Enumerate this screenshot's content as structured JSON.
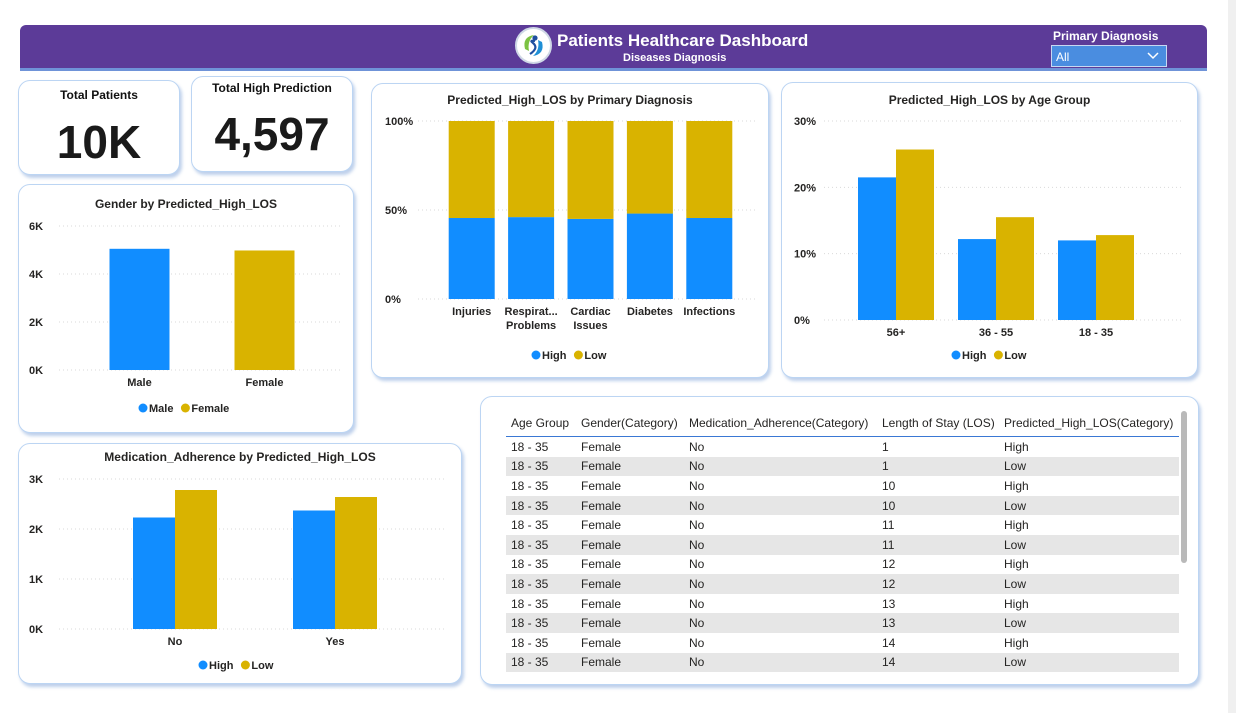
{
  "header": {
    "title": "Patients Healthcare Dashboard",
    "subtitle": "Diseases Diagnosis",
    "slicer_label": "Primary Diagnosis",
    "slicer_value": "All"
  },
  "kpis": {
    "total_patients_label": "Total Patients",
    "total_patients_value": "10K",
    "total_high_label": "Total High Prediction",
    "total_high_value": "4,597"
  },
  "colors": {
    "high": "#118dff",
    "low": "#d9b300",
    "header": "#5c3b98"
  },
  "chart_data": [
    {
      "id": "gender",
      "type": "bar",
      "title": "Gender by Predicted_High_LOS",
      "categories": [
        "Male",
        "Female"
      ],
      "values": [
        5050,
        4980
      ],
      "ylim": [
        0,
        6000
      ],
      "yticks": [
        "0K",
        "2K",
        "4K",
        "6K"
      ],
      "legend": [
        "Male",
        "Female"
      ],
      "legend_position": "bottom"
    },
    {
      "id": "medication",
      "type": "bar",
      "title": "Medication_Adherence by Predicted_High_LOS",
      "categories": [
        "No",
        "Yes"
      ],
      "series": [
        {
          "name": "High",
          "values": [
            2230,
            2370
          ]
        },
        {
          "name": "Low",
          "values": [
            2780,
            2640
          ]
        }
      ],
      "ylim": [
        0,
        3000
      ],
      "yticks": [
        "0K",
        "1K",
        "2K",
        "3K"
      ],
      "legend_position": "bottom"
    },
    {
      "id": "diagnosis",
      "type": "bar",
      "stacked": true,
      "title": "Predicted_High_LOS by Primary Diagnosis",
      "categories": [
        "Injuries",
        "Respirat...\nProblems",
        "Cardiac\nIssues",
        "Diabetes",
        "Infections"
      ],
      "series": [
        {
          "name": "High",
          "values": [
            45.5,
            46.0,
            45.0,
            48.0,
            45.5
          ]
        },
        {
          "name": "Low",
          "values": [
            54.5,
            54.0,
            55.0,
            52.0,
            54.5
          ]
        }
      ],
      "ylim": [
        0,
        100
      ],
      "yticks": [
        "0%",
        "50%",
        "100%"
      ],
      "legend_position": "bottom"
    },
    {
      "id": "agegroup",
      "type": "bar",
      "title": "Predicted_High_LOS by Age Group",
      "categories": [
        "56+",
        "36 - 55",
        "18 - 35"
      ],
      "series": [
        {
          "name": "High",
          "values": [
            21.5,
            12.2,
            12.0
          ]
        },
        {
          "name": "Low",
          "values": [
            25.7,
            15.5,
            12.8
          ]
        }
      ],
      "ylim": [
        0,
        30
      ],
      "yticks": [
        "0%",
        "10%",
        "20%",
        "30%"
      ],
      "legend_position": "bottom"
    }
  ],
  "table": {
    "columns": [
      "Age Group",
      "Gender(Category)",
      "Medication_Adherence(Category)",
      "Length of Stay (LOS)",
      "Predicted_High_LOS(Category)"
    ],
    "rows": [
      [
        "18 - 35",
        "Female",
        "No",
        "1",
        "High"
      ],
      [
        "18 - 35",
        "Female",
        "No",
        "1",
        "Low"
      ],
      [
        "18 - 35",
        "Female",
        "No",
        "10",
        "High"
      ],
      [
        "18 - 35",
        "Female",
        "No",
        "10",
        "Low"
      ],
      [
        "18 - 35",
        "Female",
        "No",
        "11",
        "High"
      ],
      [
        "18 - 35",
        "Female",
        "No",
        "11",
        "Low"
      ],
      [
        "18 - 35",
        "Female",
        "No",
        "12",
        "High"
      ],
      [
        "18 - 35",
        "Female",
        "No",
        "12",
        "Low"
      ],
      [
        "18 - 35",
        "Female",
        "No",
        "13",
        "High"
      ],
      [
        "18 - 35",
        "Female",
        "No",
        "13",
        "Low"
      ],
      [
        "18 - 35",
        "Female",
        "No",
        "14",
        "High"
      ],
      [
        "18 - 35",
        "Female",
        "No",
        "14",
        "Low"
      ]
    ]
  }
}
